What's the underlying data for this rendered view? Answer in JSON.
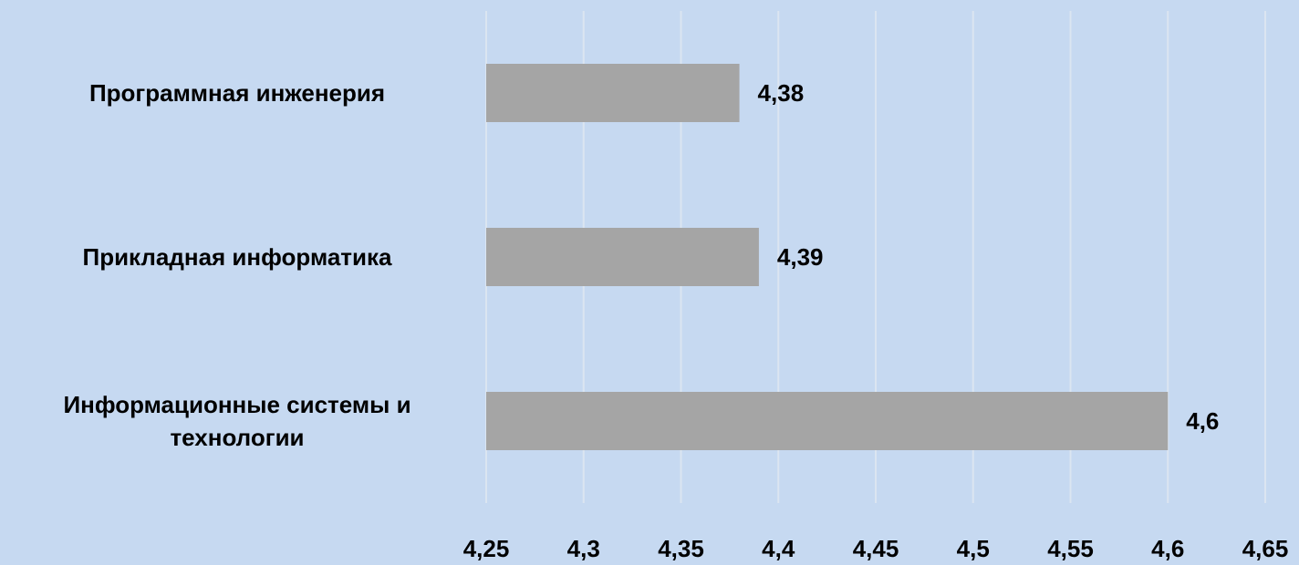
{
  "chart_data": {
    "type": "barh",
    "categories": [
      "Программная инженерия",
      "Прикладная информатика",
      "Информационные системы и технологии"
    ],
    "values": [
      4.38,
      4.39,
      4.6
    ],
    "value_labels": [
      "4,38",
      "4,39",
      "4,6"
    ],
    "color": "#a5a5a5",
    "xlim": [
      4.25,
      4.65
    ],
    "xticks": [
      {
        "value": 4.25,
        "label": "4,25"
      },
      {
        "value": 4.3,
        "label": "4,3"
      },
      {
        "value": 4.35,
        "label": "4,35"
      },
      {
        "value": 4.4,
        "label": "4,4"
      },
      {
        "value": 4.45,
        "label": "4,45"
      },
      {
        "value": 4.5,
        "label": "4,5"
      },
      {
        "value": 4.55,
        "label": "4,55"
      },
      {
        "value": 4.6,
        "label": "4,6"
      },
      {
        "value": 4.65,
        "label": "4,65"
      }
    ],
    "grid": true
  }
}
